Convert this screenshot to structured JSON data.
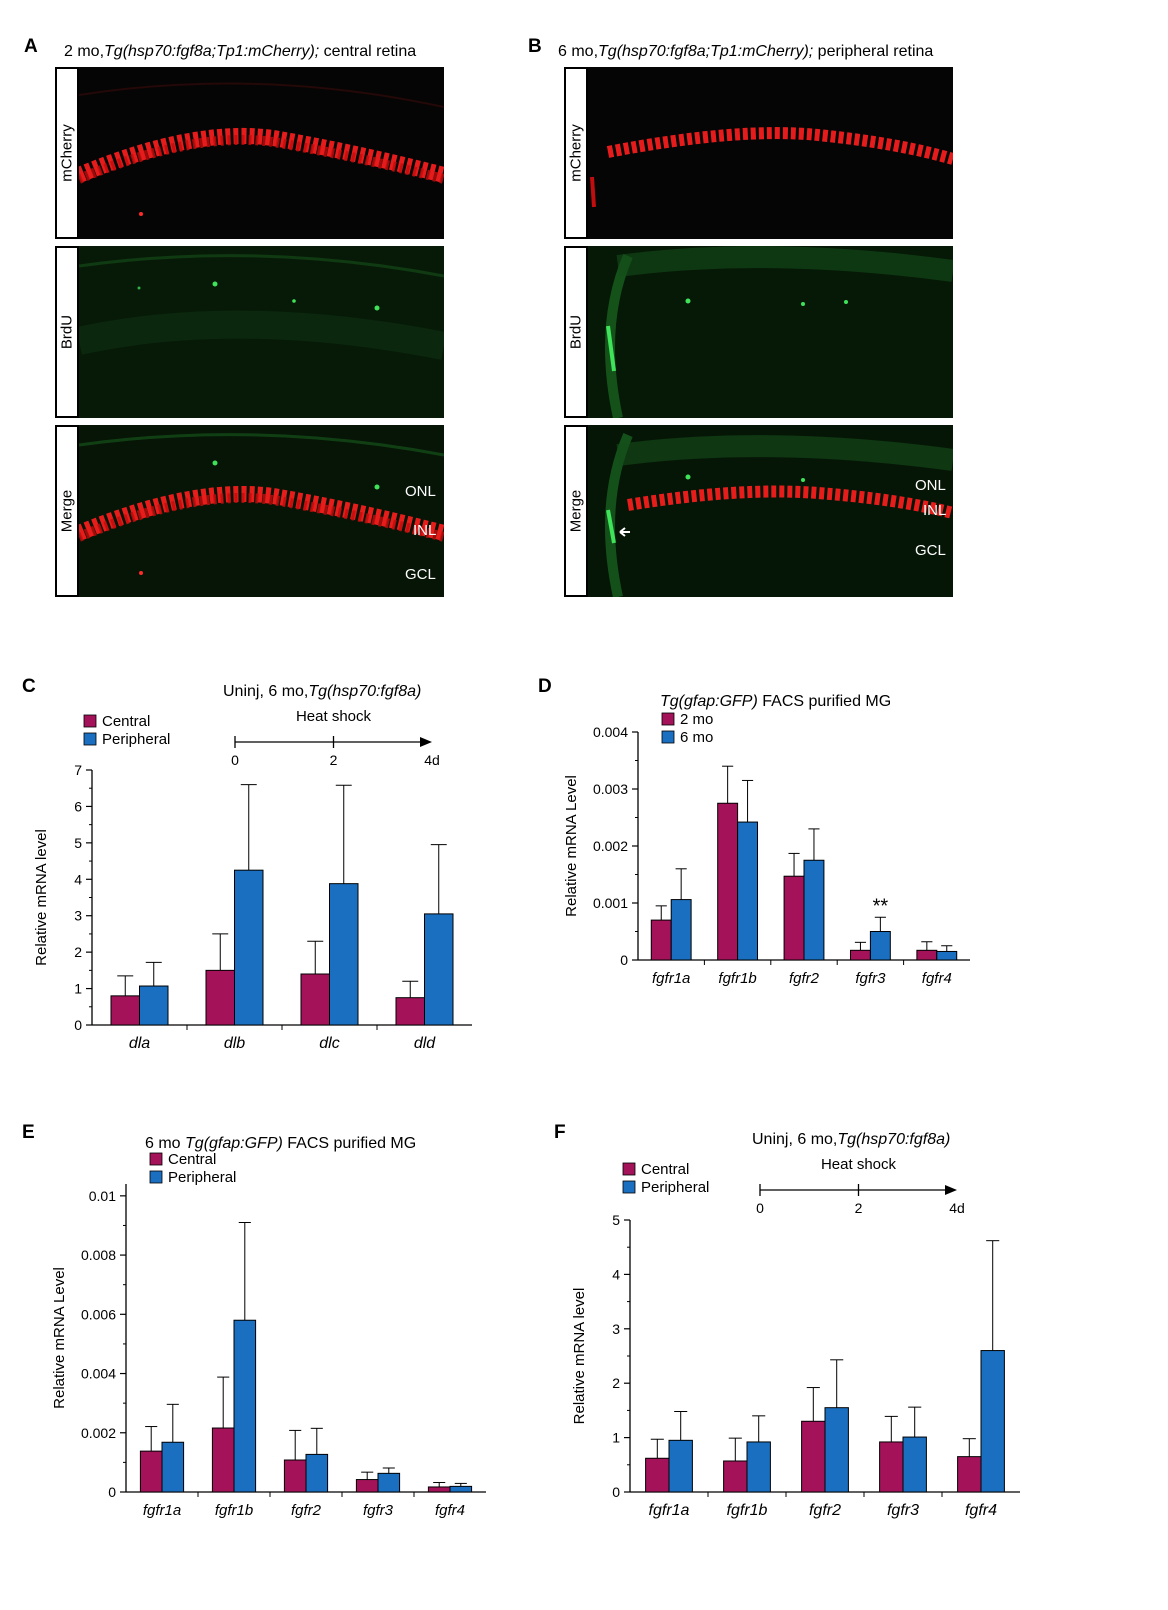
{
  "panelA": {
    "letter": "A",
    "title_pre": "2 mo,",
    "title_italic": "Tg(hsp70:fgf8a;Tp1:mCherry);",
    "title_post": " central retina",
    "rows": [
      "mCherry",
      "BrdU",
      "Merge"
    ],
    "layers": [
      "ONL",
      "INL",
      "GCL"
    ]
  },
  "panelB": {
    "letter": "B",
    "title_pre": "6 mo,",
    "title_italic": "Tg(hsp70:fgf8a;Tp1:mCherry);",
    "title_post": " peripheral retina",
    "rows": [
      "mCherry",
      "BrdU",
      "Merge"
    ],
    "layers": [
      "ONL",
      "INL",
      "GCL"
    ]
  },
  "colors": {
    "series1": "#a4135a",
    "series2": "#1a6fc0"
  },
  "charts": {
    "C": {
      "letter": "C",
      "title_pre": "Uninj, 6 mo,",
      "title_italic": "Tg(hsp70:fgf8a)",
      "timeline": {
        "label": "Heat shock",
        "ticks": [
          "0",
          "2",
          "4d"
        ]
      },
      "chart_data": {
        "type": "bar",
        "categories": [
          "dla",
          "dlb",
          "dlc",
          "dld"
        ],
        "series": [
          {
            "name": "Central",
            "values": [
              0.8,
              1.5,
              1.4,
              0.75
            ],
            "errors": [
              0.55,
              1.0,
              0.9,
              0.45
            ]
          },
          {
            "name": "Peripheral",
            "values": [
              1.07,
              4.25,
              3.88,
              3.05
            ],
            "errors": [
              0.65,
              2.35,
              2.7,
              1.9
            ]
          }
        ],
        "ylabel": "Relative mRNA level",
        "ylim": [
          0,
          7
        ],
        "yticks": [
          0,
          1,
          2,
          3,
          4,
          5,
          6,
          7
        ],
        "ytick_labels": [
          "0",
          "1",
          "2",
          "3",
          "4",
          "5",
          "6",
          "7"
        ],
        "legend": "top-left"
      }
    },
    "D": {
      "letter": "D",
      "title_pre": "",
      "title_italic": "Tg(gfap:GFP)",
      "title_post": " FACS purified MG",
      "chart_data": {
        "type": "bar",
        "categories": [
          "fgfr1a",
          "fgfr1b",
          "fgfr2",
          "fgfr3",
          "fgfr4"
        ],
        "series": [
          {
            "name": "2 mo",
            "values": [
              0.0007,
              0.00275,
              0.00147,
              0.00017,
              0.00017
            ],
            "errors": [
              0.00025,
              0.00065,
              0.0004,
              0.00014,
              0.00015
            ]
          },
          {
            "name": "6 mo",
            "values": [
              0.00106,
              0.00242,
              0.00175,
              0.0005,
              0.00015
            ],
            "errors": [
              0.00054,
              0.00073,
              0.00055,
              0.00025,
              0.0001
            ]
          }
        ],
        "annotations": [
          {
            "category": "fgfr3",
            "text": "**"
          }
        ],
        "ylabel": "Relative mRNA Level",
        "ylim": [
          0,
          0.004
        ],
        "yticks": [
          0,
          0.001,
          0.002,
          0.003,
          0.004
        ],
        "ytick_labels": [
          "0",
          "0.001",
          "0.002",
          "0.003",
          "0.004"
        ],
        "legend": "top-left"
      }
    },
    "E": {
      "letter": "E",
      "title_pre": "6 mo ",
      "title_italic": "Tg(gfap:GFP)",
      "title_post": " FACS purified MG",
      "chart_data": {
        "type": "bar",
        "categories": [
          "fgfr1a",
          "fgfr1b",
          "fgfr2",
          "fgfr3",
          "fgfr4"
        ],
        "series": [
          {
            "name": "Central",
            "values": [
              0.00138,
              0.00216,
              0.00108,
              0.00042,
              0.00017
            ],
            "errors": [
              0.00083,
              0.00172,
              0.001,
              0.00025,
              0.00015
            ]
          },
          {
            "name": "Peripheral",
            "values": [
              0.00168,
              0.0058,
              0.00127,
              0.00063,
              0.00019
            ],
            "errors": [
              0.00128,
              0.0033,
              0.00088,
              0.00018,
              0.0001
            ]
          }
        ],
        "ylabel": "Relative mRNA Level",
        "ylim": [
          0,
          0.0104
        ],
        "yticks": [
          0,
          0.002,
          0.004,
          0.006,
          0.008,
          0.01
        ],
        "ytick_labels": [
          "0",
          "0.002",
          "0.004",
          "0.006",
          "0.008",
          "0.01"
        ],
        "legend": "top-left"
      }
    },
    "F": {
      "letter": "F",
      "title_pre": "Uninj, 6 mo,",
      "title_italic": "Tg(hsp70:fgf8a)",
      "timeline": {
        "label": "Heat shock",
        "ticks": [
          "0",
          "2",
          "4d"
        ]
      },
      "chart_data": {
        "type": "bar",
        "categories": [
          "fgfr1a",
          "fgfr1b",
          "fgfr2",
          "fgfr3",
          "fgfr4"
        ],
        "series": [
          {
            "name": "Central",
            "values": [
              0.62,
              0.57,
              1.3,
              0.92,
              0.65
            ],
            "errors": [
              0.35,
              0.42,
              0.62,
              0.47,
              0.33
            ]
          },
          {
            "name": "Peripheral",
            "values": [
              0.95,
              0.92,
              1.55,
              1.01,
              2.6
            ],
            "errors": [
              0.53,
              0.48,
              0.88,
              0.55,
              2.02
            ]
          }
        ],
        "ylabel": "Relative mRNA level",
        "ylim": [
          0,
          5
        ],
        "yticks": [
          0,
          1,
          2,
          3,
          4,
          5
        ],
        "ytick_labels": [
          "0",
          "1",
          "2",
          "3",
          "4",
          "5"
        ],
        "legend": "top-left"
      }
    }
  }
}
